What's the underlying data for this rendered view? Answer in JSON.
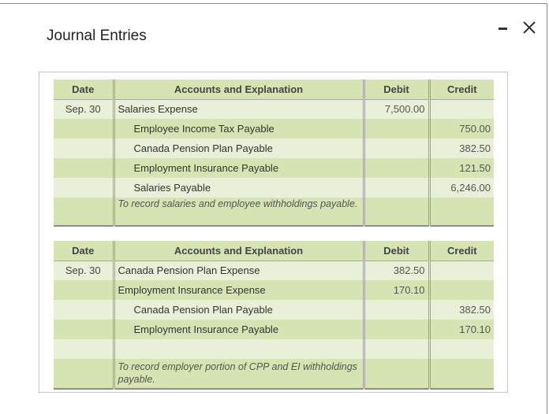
{
  "dialog": {
    "title": "Journal Entries"
  },
  "headers": {
    "date": "Date",
    "account": "Accounts and Explanation",
    "debit": "Debit",
    "credit": "Credit"
  },
  "entry1": {
    "date": "Sep. 30",
    "rows": [
      {
        "account": "Salaries Expense",
        "debit": "7,500.00",
        "credit": ""
      },
      {
        "account": "Employee Income Tax Payable",
        "debit": "",
        "credit": "750.00"
      },
      {
        "account": "Canada Pension Plan Payable",
        "debit": "",
        "credit": "382.50"
      },
      {
        "account": "Employment Insurance Payable",
        "debit": "",
        "credit": "121.50"
      },
      {
        "account": "Salaries Payable",
        "debit": "",
        "credit": "6,246.00"
      }
    ],
    "note": "To record salaries and employee withholdings payable."
  },
  "entry2": {
    "date": "Sep. 30",
    "rows": [
      {
        "account": "Canada Pension Plan Expense",
        "debit": "382.50",
        "credit": ""
      },
      {
        "account": "Employment Insurance Expense",
        "debit": "170.10",
        "credit": ""
      },
      {
        "account": "Canada Pension Plan Payable",
        "debit": "",
        "credit": "382.50"
      },
      {
        "account": "Employment Insurance Payable",
        "debit": "",
        "credit": "170.10"
      }
    ],
    "note": "To record employer portion of CPP and EI withholdings payable."
  }
}
